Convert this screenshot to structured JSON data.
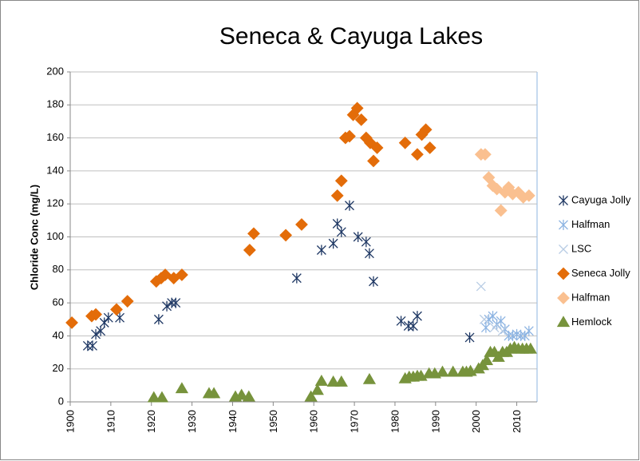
{
  "chart_data": {
    "type": "scatter",
    "title": "Seneca & Cayuga Lakes",
    "y_label": "Chloride Conc (mg/L)",
    "xlim": [
      1900,
      2015
    ],
    "xticks": [
      1900,
      1910,
      1920,
      1930,
      1940,
      1950,
      1960,
      1970,
      1980,
      1990,
      2000,
      2010
    ],
    "ylim": [
      0,
      200
    ],
    "yticks": [
      0,
      20,
      40,
      60,
      80,
      100,
      120,
      140,
      160,
      180,
      200
    ],
    "grid": true,
    "legend": "right",
    "series": [
      {
        "name": "Cayuga Jolly",
        "color": "#1f3864",
        "marker": "asterisk",
        "x": [
          1904.3,
          1905.5,
          1906.3,
          1907.5,
          1908.4,
          1909.4,
          1912.2,
          1921.8,
          1923.8,
          1925,
          1926,
          1955.8,
          1961.9,
          1964.8,
          1965.8,
          1966.8,
          1968.8,
          1970.9,
          1972.9,
          1973.7,
          1974.7,
          1981.5,
          1983.3,
          1984.5,
          1985.5,
          1998.4
        ],
        "values": [
          34,
          34,
          41,
          43,
          48,
          51,
          51,
          50,
          58,
          60,
          60,
          75,
          92,
          96,
          108,
          103,
          119,
          100,
          97,
          90,
          73,
          49,
          46,
          46,
          52,
          39
        ]
      },
      {
        "name": "Halfman",
        "color": "#8db4e2",
        "marker": "asterisk",
        "x": [
          2002.4,
          2003.1,
          2004.1,
          2005.1,
          2006.1,
          2007.1,
          2008,
          2009,
          2010,
          2011,
          2012,
          2013
        ],
        "values": [
          45,
          50,
          52,
          47,
          49,
          44,
          40,
          40,
          41,
          40,
          40,
          43
        ]
      },
      {
        "name": "LSC",
        "color": "#b8cce4",
        "marker": "x",
        "x": [
          2001.2,
          2002,
          2004.5,
          2006.5
        ],
        "values": [
          70,
          50,
          45,
          43
        ]
      },
      {
        "name": "Seneca Jolly",
        "color": "#e36c09",
        "marker": "diamond",
        "x": [
          1900.4,
          1905.3,
          1906.3,
          1911.4,
          1914.1,
          1921.2,
          1922.4,
          1923.4,
          1925.5,
          1927.5,
          1944.2,
          1945.2,
          1953.1,
          1957,
          1965.8,
          1966.8,
          1967.8,
          1968.8,
          1969.7,
          1970.7,
          1971.7,
          1972.9,
          1973.9,
          1974.7,
          1975.6,
          1982.5,
          1985.5,
          1986.6,
          1987.6,
          1988.6
        ],
        "values": [
          48,
          52,
          53,
          56,
          61,
          73,
          75,
          77,
          75,
          77,
          92,
          102,
          101,
          107.5,
          125,
          134,
          160,
          161,
          174,
          178,
          171,
          160,
          157,
          146,
          154,
          157,
          150,
          162,
          165,
          154
        ]
      },
      {
        "name": "Halfman",
        "color": "#fac090",
        "marker": "diamond",
        "x": [
          2001.2,
          2002.2,
          2003.1,
          2004.1,
          2005.1,
          2006.1,
          2007.1,
          2008,
          2009,
          2010.4,
          2011.6,
          2013
        ],
        "values": [
          150,
          150,
          136,
          131,
          129,
          116,
          127,
          130,
          126,
          127,
          124,
          125
        ]
      },
      {
        "name": "Hemlock",
        "color": "#77933c",
        "marker": "triangle",
        "x": [
          1920.6,
          1922.6,
          1927.5,
          1934.2,
          1935.4,
          1940.7,
          1942.2,
          1944,
          1959.3,
          1960.9,
          1961.9,
          1964.8,
          1966.8,
          1973.7,
          1982.5,
          1983.5,
          1984.5,
          1985.5,
          1986.4,
          1988.4,
          1989.8,
          1991.7,
          1994.3,
          1996.7,
          1997.6,
          1998.6,
          2000.6,
          2001.6,
          2002.6,
          2003.5,
          2004.5,
          2005.5,
          2006.5,
          2007.5,
          2008.4,
          2009.4,
          2010.4,
          2011.4,
          2012.4,
          2013.4
        ],
        "values": [
          2.5,
          2.5,
          8,
          5,
          5,
          3,
          4,
          3,
          3,
          7,
          12.5,
          12,
          12,
          13.5,
          14,
          15,
          15,
          15.5,
          15.5,
          17,
          17,
          18,
          18,
          18,
          18,
          18.5,
          20,
          22,
          25,
          30,
          30,
          27,
          30,
          30,
          32,
          33,
          32,
          32,
          32,
          32
        ]
      }
    ]
  }
}
